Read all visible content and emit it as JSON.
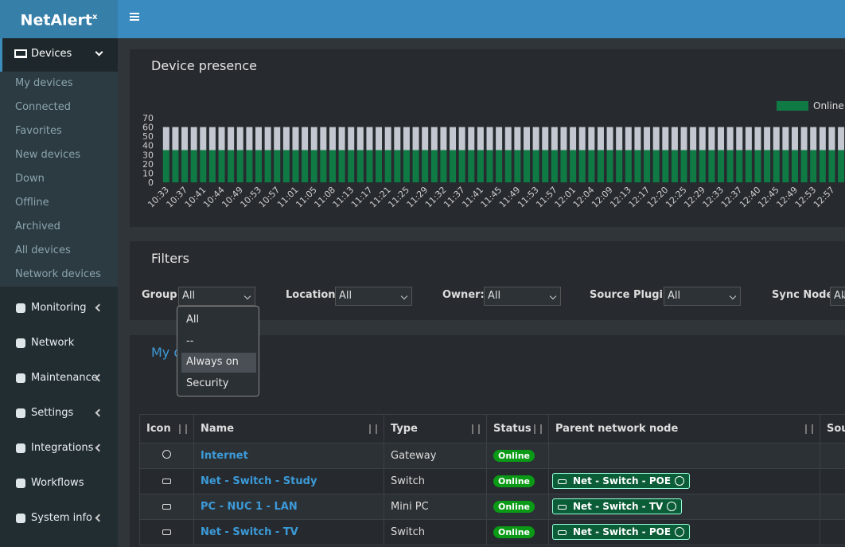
{
  "header": {
    "logo": "NetAlert",
    "logo_sup": "x"
  },
  "sidebar": {
    "devices": "Devices",
    "submenu": [
      "My devices",
      "Connected",
      "Favorites",
      "New devices",
      "Down",
      "Offline",
      "Archived",
      "All devices",
      "Network devices"
    ],
    "menu": [
      "Monitoring",
      "Network",
      "Maintenance",
      "Settings",
      "Integrations",
      "Workflows",
      "System info"
    ]
  },
  "chart_data": {
    "type": "bar",
    "stacked": true,
    "title": "Device presence",
    "categories": [
      "10:33",
      null,
      "10:37",
      null,
      "10:41",
      null,
      "10:44",
      null,
      "10:49",
      null,
      "10:53",
      null,
      "10:57",
      null,
      "11:01",
      null,
      "11:05",
      null,
      "11:08",
      null,
      "11:13",
      null,
      "11:17",
      null,
      "11:21",
      null,
      "11:25",
      null,
      "11:29",
      null,
      "11:32",
      null,
      "11:37",
      null,
      "11:41",
      null,
      "11:45",
      null,
      "11:49",
      null,
      "11:53",
      null,
      "11:57",
      null,
      "12:01",
      null,
      "12:04",
      null,
      "12:09",
      null,
      "12:13",
      null,
      "12:17",
      null,
      "12:20",
      null,
      "12:25",
      null,
      "12:29",
      null,
      "12:33",
      null,
      "12:37",
      null,
      "12:40",
      null,
      "12:45",
      null,
      "12:49",
      null,
      "12:53",
      null,
      "12:57",
      null
    ],
    "series": [
      {
        "name": "Online",
        "color": "#107a45",
        "values": [
          35,
          35,
          35,
          35,
          35,
          35,
          35,
          35,
          35,
          35,
          35,
          35,
          35,
          35,
          35,
          35,
          35,
          35,
          35,
          35,
          35,
          35,
          35,
          35,
          35,
          35,
          35,
          35,
          35,
          35,
          35,
          35,
          35,
          35,
          35,
          35,
          35,
          35,
          35,
          35,
          35,
          35,
          35,
          35,
          35,
          35,
          35,
          35,
          35,
          35,
          35,
          35,
          35,
          35,
          35,
          35,
          35,
          35,
          35,
          35,
          35,
          35,
          35,
          35,
          35,
          35,
          35,
          35,
          35,
          35,
          35,
          35,
          35,
          35
        ]
      },
      {
        "color": "#c3c7d0",
        "values": [
          25,
          25,
          25,
          25,
          25,
          25,
          25,
          25,
          25,
          25,
          25,
          25,
          25,
          25,
          25,
          25,
          25,
          25,
          25,
          25,
          25,
          25,
          25,
          25,
          25,
          25,
          25,
          25,
          25,
          25,
          25,
          25,
          25,
          25,
          25,
          25,
          25,
          25,
          25,
          25,
          25,
          25,
          25,
          25,
          25,
          25,
          25,
          25,
          25,
          25,
          25,
          25,
          25,
          25,
          25,
          25,
          25,
          25,
          25,
          25,
          25,
          25,
          25,
          25,
          25,
          25,
          25,
          25,
          25,
          25,
          25,
          25,
          25,
          25
        ]
      }
    ],
    "ylim": [
      0,
      70
    ],
    "yticks": [
      0,
      10,
      20,
      30,
      40,
      50,
      60,
      70
    ],
    "legend": "top-right"
  },
  "filters": {
    "title": "Filters",
    "fields": [
      {
        "label": "Group:",
        "value": "All"
      },
      {
        "label": "Location:",
        "value": "All"
      },
      {
        "label": "Owner:",
        "value": "All"
      },
      {
        "label": "Source Plugin:",
        "value": "All"
      },
      {
        "label": "Sync Node:",
        "value": "All"
      }
    ],
    "dropdown": {
      "options": [
        "All",
        "--",
        "Always on",
        "Security"
      ],
      "highlighted_index": 2
    }
  },
  "devices": {
    "title": "My devices",
    "columns": [
      "Icon",
      "Name",
      "Type",
      "Status",
      "Parent network node",
      "Source"
    ],
    "rows": [
      {
        "name": "Internet",
        "type": "Gateway",
        "status": "Online"
      },
      {
        "name": "Net - Switch - Study",
        "type": "Switch",
        "status": "Online",
        "parent": "Net - Switch - POE"
      },
      {
        "name": "PC - NUC 1 - LAN",
        "type": "Mini PC",
        "status": "Online",
        "parent": "Net - Switch - TV"
      },
      {
        "name": "Net - Switch - TV",
        "type": "Switch",
        "status": "Online",
        "parent": "Net - Switch - POE"
      }
    ]
  }
}
